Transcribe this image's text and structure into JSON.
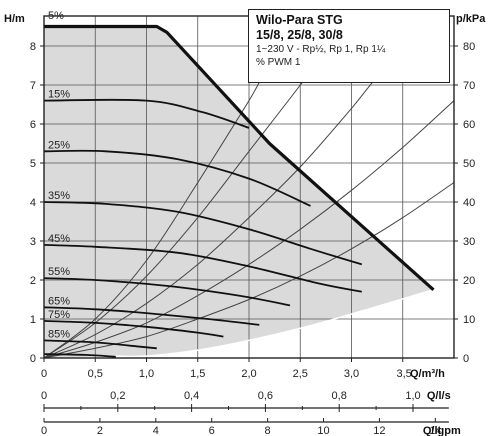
{
  "chart_data": {
    "type": "line",
    "title": "Wilo-Para STG",
    "models": "15/8, 25/8, 30/8",
    "supply": "1~230 V - Rp½, Rp 1, Rp 1¼",
    "control": "% PWM 1",
    "ylabel": "H/m",
    "y2label": "p/kPa",
    "xlabel": "Q/m³/h",
    "x2label": "Q/l/s",
    "x3label": "Q/lgpm",
    "xlim": [
      0,
      4
    ],
    "ylim": [
      0,
      9
    ],
    "y2lim": [
      0,
      90
    ],
    "x_ticks": [
      0,
      0.5,
      1.0,
      1.5,
      2.0,
      2.5,
      3.0,
      3.5
    ],
    "x_tick_labels": [
      "0",
      "0,5",
      "1,0",
      "1,5",
      "2,0",
      "2,5",
      "3,0",
      "3,5"
    ],
    "y_ticks": [
      0,
      1,
      2,
      3,
      4,
      5,
      6,
      7,
      8
    ],
    "y2_ticks": [
      0,
      10,
      20,
      30,
      40,
      50,
      60,
      70,
      80
    ],
    "x2_ticks": [
      0,
      0.2,
      0.4,
      0.6,
      0.8,
      1.0
    ],
    "x2_tick_labels": [
      "0",
      "0,2",
      "0,4",
      "0,6",
      "0,8",
      "1,0"
    ],
    "x3_ticks": [
      0,
      2,
      4,
      6,
      8,
      10,
      12,
      14
    ],
    "x3_tick_labels": [
      "0",
      "2",
      "4",
      "6",
      "8",
      "10",
      "12",
      "14"
    ],
    "grid": true,
    "max_curve": {
      "x": [
        0,
        1.1,
        1.2,
        2.2,
        3.8
      ],
      "y": [
        8.5,
        8.5,
        8.35,
        5.5,
        1.75
      ]
    },
    "min_envelope": {
      "x": [
        0.7,
        1.0,
        1.5,
        2.0,
        2.7,
        3.8
      ],
      "y": [
        0.05,
        0.05,
        0.2,
        0.45,
        0.9,
        1.75
      ]
    },
    "series": [
      {
        "name": "5%",
        "x": [
          0,
          1.1,
          1.2,
          2.2,
          3.8
        ],
        "y": [
          8.5,
          8.5,
          8.35,
          5.5,
          1.75
        ]
      },
      {
        "name": "15%",
        "x": [
          0,
          1.0,
          1.55,
          2.0
        ],
        "y": [
          6.6,
          6.6,
          6.3,
          5.9
        ]
      },
      {
        "name": "25%",
        "x": [
          0,
          0.6,
          1.3,
          2.0,
          2.6
        ],
        "y": [
          5.3,
          5.3,
          5.1,
          4.6,
          3.9
        ]
      },
      {
        "name": "35%",
        "x": [
          0,
          0.6,
          1.3,
          2.0,
          2.6,
          3.1
        ],
        "y": [
          4.0,
          3.95,
          3.75,
          3.3,
          2.8,
          2.4
        ]
      },
      {
        "name": "45%",
        "x": [
          0,
          0.5,
          1.3,
          2.0,
          2.7,
          3.1
        ],
        "y": [
          2.9,
          2.85,
          2.7,
          2.35,
          1.9,
          1.7
        ]
      },
      {
        "name": "55%",
        "x": [
          0,
          0.5,
          1.2,
          1.9,
          2.4
        ],
        "y": [
          2.05,
          2.0,
          1.85,
          1.6,
          1.35
        ]
      },
      {
        "name": "65%",
        "x": [
          0,
          0.5,
          1.0,
          1.6,
          2.1
        ],
        "y": [
          1.3,
          1.25,
          1.15,
          1.0,
          0.85
        ]
      },
      {
        "name": "75%",
        "x": [
          0,
          0.5,
          1.0,
          1.5,
          1.75
        ],
        "y": [
          0.95,
          0.9,
          0.8,
          0.65,
          0.55
        ]
      },
      {
        "name": "85%",
        "x": [
          0,
          0.5,
          0.9,
          1.1
        ],
        "y": [
          0.45,
          0.4,
          0.3,
          0.25
        ]
      },
      {
        "name": "",
        "x": [
          0,
          0.4,
          0.7
        ],
        "y": [
          0.1,
          0.08,
          0.03
        ]
      }
    ],
    "system_curves": [
      {
        "x": [
          0,
          0.5,
          1.0,
          1.5,
          2.0,
          2.5,
          3.0
        ],
        "y": [
          0,
          1.0,
          2.5,
          4.5,
          6.6,
          8.8,
          9.0
        ]
      },
      {
        "x": [
          0,
          0.5,
          1.0,
          1.5,
          2.0,
          2.5,
          3.0,
          3.5
        ],
        "y": [
          0,
          0.9,
          2.1,
          3.6,
          5.3,
          7.0,
          8.8,
          9.0
        ]
      },
      {
        "x": [
          0,
          0.5,
          1.0,
          1.5,
          2.0,
          2.5,
          3.0,
          3.5,
          3.9
        ],
        "y": [
          0,
          0.6,
          1.4,
          2.4,
          3.6,
          4.9,
          6.4,
          8.0,
          9.0
        ]
      },
      {
        "x": [
          0,
          0.5,
          1.0,
          1.5,
          2.0,
          2.5,
          3.0,
          3.5,
          4.0
        ],
        "y": [
          0,
          0.4,
          0.9,
          1.6,
          2.4,
          3.3,
          4.3,
          5.4,
          6.6
        ]
      },
      {
        "x": [
          0,
          0.5,
          1.0,
          1.5,
          2.0,
          2.5,
          3.0,
          3.5,
          4.0
        ],
        "y": [
          0,
          0.25,
          0.55,
          1.0,
          1.5,
          2.1,
          2.8,
          3.6,
          4.5
        ]
      }
    ]
  }
}
